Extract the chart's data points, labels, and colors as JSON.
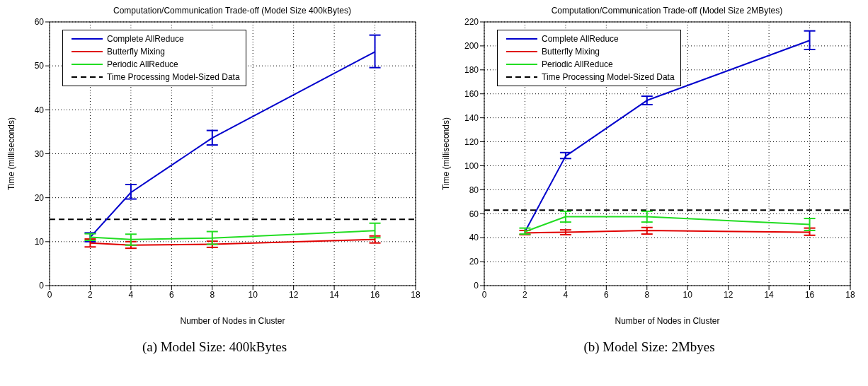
{
  "chart_data": [
    {
      "type": "line",
      "title": "Computation/Communication Trade-off (Model Size 400kBytes)",
      "xlabel": "Number of Nodes in Cluster",
      "ylabel": "Time (milliseconds)",
      "x": [
        2,
        4,
        8,
        16
      ],
      "series": [
        {
          "name": "Complete AllReduce",
          "color": "#0000cc",
          "values": [
            11,
            21.2,
            33.6,
            53.2
          ],
          "errors": [
            [
              10,
              12
            ],
            [
              19.7,
              23
            ],
            [
              32,
              35.3
            ],
            [
              49.6,
              57
            ]
          ]
        },
        {
          "name": "Butterfly Mixing",
          "color": "#e00000",
          "values": [
            9.7,
            9.2,
            9.4,
            10.5
          ],
          "errors": [
            [
              8.8,
              10.6
            ],
            [
              8.5,
              10
            ],
            [
              8.7,
              10.1
            ],
            [
              9.7,
              11.3
            ]
          ]
        },
        {
          "name": "Periodic AllReduce",
          "color": "#22dd22",
          "values": [
            11,
            10.5,
            10.8,
            12.5
          ],
          "errors": [
            [
              10.3,
              11.8
            ],
            [
              9.2,
              11.7
            ],
            [
              9.4,
              12.3
            ],
            [
              10.9,
              14.2
            ]
          ]
        }
      ],
      "ref_lines": [
        {
          "axis": "y",
          "value": 15.1,
          "label": "Time Processing Model-Sized Data",
          "color": "#000000",
          "line_style": "dashed"
        }
      ],
      "xlim": [
        0,
        18
      ],
      "xticks": [
        0,
        2,
        4,
        6,
        8,
        10,
        12,
        14,
        16,
        18
      ],
      "ylim": [
        0,
        60
      ],
      "yticks": [
        0,
        10,
        20,
        30,
        40,
        50,
        60
      ],
      "grid": true,
      "legend": "top left",
      "marker": "none",
      "line_style": "solid",
      "annotations": [
        "(a) Model Size: 400kBytes"
      ]
    },
    {
      "type": "line",
      "title": "Computation/Communication Trade-off (Model Size 2MBytes)",
      "xlabel": "Number of Nodes in Cluster",
      "ylabel": "Time (milliseconds)",
      "x": [
        2,
        4,
        8,
        16
      ],
      "series": [
        {
          "name": "Complete AllReduce",
          "color": "#0000cc",
          "values": [
            45,
            108,
            154.5,
            204.5
          ],
          "errors": [
            null,
            [
              106,
              111
            ],
            [
              151,
              158
            ],
            [
              197,
              212.5
            ]
          ]
        },
        {
          "name": "Butterfly Mixing",
          "color": "#e00000",
          "values": [
            44,
            44.5,
            46,
            44.5
          ],
          "errors": [
            [
              42.5,
              46
            ],
            [
              42.5,
              46.5
            ],
            [
              43,
              48.5
            ],
            [
              42,
              48
            ]
          ]
        },
        {
          "name": "Periodic AllReduce",
          "color": "#22dd22",
          "values": [
            45,
            57.5,
            57.5,
            51
          ],
          "errors": [
            [
              43,
              48
            ],
            [
              53,
              62
            ],
            [
              53,
              62
            ],
            [
              46,
              56
            ]
          ]
        }
      ],
      "ref_lines": [
        {
          "axis": "y",
          "value": 63,
          "label": "Time Processing Model-Sized Data",
          "color": "#000000",
          "line_style": "dashed"
        }
      ],
      "xlim": [
        0,
        18
      ],
      "xticks": [
        0,
        2,
        4,
        6,
        8,
        10,
        12,
        14,
        16,
        18
      ],
      "ylim": [
        0,
        220
      ],
      "yticks": [
        0,
        20,
        40,
        60,
        80,
        100,
        120,
        140,
        160,
        180,
        200,
        220
      ],
      "grid": true,
      "legend": "top left",
      "marker": "none",
      "line_style": "solid",
      "annotations": [
        "(b) Model Size: 2Mbyes"
      ]
    }
  ]
}
